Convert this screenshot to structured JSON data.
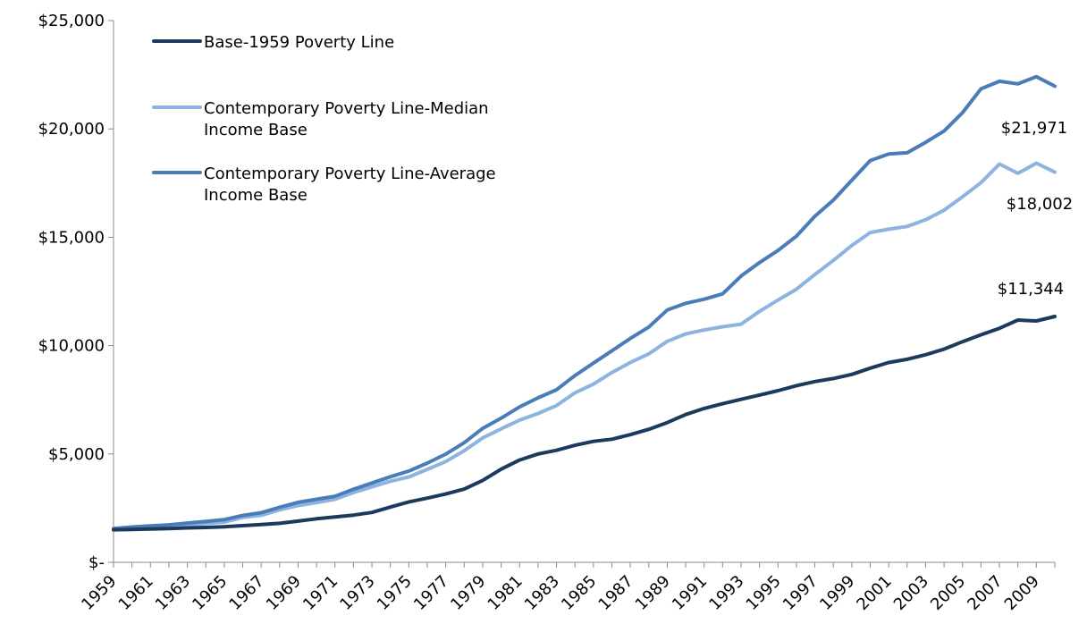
{
  "chart_data": {
    "type": "line",
    "x": [
      1959,
      1960,
      1961,
      1962,
      1963,
      1964,
      1965,
      1966,
      1967,
      1968,
      1969,
      1970,
      1971,
      1972,
      1973,
      1974,
      1975,
      1976,
      1977,
      1978,
      1979,
      1980,
      1981,
      1982,
      1983,
      1984,
      1985,
      1986,
      1987,
      1988,
      1989,
      1990,
      1991,
      1992,
      1993,
      1994,
      1995,
      1996,
      1997,
      1998,
      1999,
      2000,
      2001,
      2002,
      2003,
      2004,
      2005,
      2006,
      2007,
      2008,
      2009,
      2010
    ],
    "x_tick_labels": [
      "1959",
      "1961",
      "1963",
      "1965",
      "1967",
      "1969",
      "1971",
      "1973",
      "1975",
      "1977",
      "1979",
      "1981",
      "1983",
      "1985",
      "1987",
      "1989",
      "1991",
      "1993",
      "1995",
      "1997",
      "1999",
      "2001",
      "2003",
      "2005",
      "2007",
      "2009"
    ],
    "ylim": [
      0,
      25000
    ],
    "y_tick_labels": [
      "$-",
      "$5,000",
      "$10,000",
      "$15,000",
      "$20,000",
      "$25,000"
    ],
    "y_ticks": [
      0,
      5000,
      10000,
      15000,
      20000,
      25000
    ],
    "legend_position": "top-left",
    "series": [
      {
        "name": "Base-1959 Poverty Line",
        "color": "#1b3a5e",
        "values": [
          1500,
          1520,
          1540,
          1560,
          1590,
          1610,
          1640,
          1690,
          1740,
          1800,
          1900,
          2010,
          2090,
          2180,
          2300,
          2550,
          2790,
          2960,
          3150,
          3380,
          3780,
          4300,
          4720,
          5000,
          5170,
          5400,
          5580,
          5680,
          5890,
          6140,
          6450,
          6820,
          7100,
          7320,
          7520,
          7720,
          7920,
          8150,
          8340,
          8480,
          8670,
          8960,
          9220,
          9370,
          9580,
          9840,
          10180,
          10500,
          10800,
          11180,
          11140,
          11344
        ]
      },
      {
        "name": "Contemporary Poverty Line-Median Income Base",
        "color": "#8db4e0",
        "values": [
          1520,
          1560,
          1610,
          1660,
          1720,
          1790,
          1860,
          2070,
          2170,
          2420,
          2620,
          2760,
          2910,
          3220,
          3480,
          3740,
          3940,
          4290,
          4650,
          5150,
          5740,
          6160,
          6560,
          6870,
          7230,
          7820,
          8220,
          8760,
          9220,
          9620,
          10200,
          10540,
          10720,
          10870,
          10990,
          11580,
          12100,
          12600,
          13280,
          13930,
          14620,
          15220,
          15370,
          15500,
          15810,
          16250,
          16870,
          17520,
          18380,
          17950,
          18420,
          18002
        ]
      },
      {
        "name": "Contemporary Poverty Line-Average Income Base",
        "color": "#4a7db8",
        "values": [
          1560,
          1630,
          1680,
          1730,
          1810,
          1890,
          1970,
          2160,
          2290,
          2540,
          2770,
          2910,
          3050,
          3370,
          3660,
          3950,
          4210,
          4580,
          4990,
          5520,
          6180,
          6650,
          7170,
          7590,
          7960,
          8620,
          9190,
          9760,
          10330,
          10860,
          11640,
          11950,
          12140,
          12390,
          13210,
          13830,
          14390,
          15050,
          15970,
          16710,
          17630,
          18540,
          18840,
          18900,
          19380,
          19900,
          20750,
          21850,
          22200,
          22080,
          22410,
          21971
        ]
      }
    ],
    "annotations": [
      "$11,344",
      "$18,002",
      "$21,971"
    ]
  }
}
